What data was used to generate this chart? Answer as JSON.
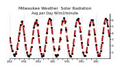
{
  "title": "Milwaukee Weather  Solar Radiation",
  "subtitle": "Avg per Day W/m2/minute",
  "title_fontsize": 4.2,
  "ylim": [
    0,
    7
  ],
  "yticks": [
    1,
    2,
    3,
    4,
    5,
    6
  ],
  "ylabel_fontsize": 3.2,
  "xlabel_fontsize": 2.8,
  "line_color": "#cc0000",
  "bg_color": "#ffffff",
  "grid_color": "#999999",
  "values": [
    3.2,
    2.1,
    1.2,
    0.7,
    0.5,
    0.8,
    1.5,
    2.8,
    4.0,
    5.2,
    5.8,
    5.0,
    3.8,
    2.2,
    1.0,
    0.4,
    0.3,
    0.7,
    1.8,
    3.2,
    4.8,
    5.5,
    6.0,
    5.2,
    3.5,
    1.8,
    0.8,
    0.3,
    0.5,
    1.2,
    2.5,
    4.0,
    5.5,
    6.2,
    6.0,
    4.8,
    3.0,
    1.5,
    0.6,
    0.3,
    0.6,
    1.5,
    3.0,
    4.5,
    5.8,
    6.3,
    5.8,
    4.5,
    2.8,
    1.2,
    0.5,
    0.3,
    0.8,
    2.0,
    3.5,
    5.0,
    6.0,
    6.2,
    5.5,
    4.2,
    2.5,
    1.0,
    0.5,
    0.4,
    1.0,
    2.2,
    3.8,
    5.2,
    6.0,
    6.0,
    5.2,
    3.8,
    2.2,
    1.0,
    0.5,
    0.5,
    1.2,
    2.5,
    4.0,
    5.5,
    6.2,
    6.0,
    5.0,
    3.5
  ],
  "grid_x_positions": [
    0,
    12,
    24,
    36,
    48,
    60,
    72
  ],
  "x_tick_labels": [
    "1/04",
    "5/04",
    "9/04",
    "1/05",
    "5/05",
    "9/05",
    "1/06",
    "5/06",
    "9/06",
    "1/07",
    "5/07",
    "9/07",
    "1/08",
    "5/08",
    "9/08",
    "1/09",
    "5/09",
    "9/09",
    "1/10"
  ],
  "x_tick_positions": [
    0,
    4,
    8,
    12,
    16,
    20,
    24,
    28,
    32,
    36,
    40,
    44,
    48,
    52,
    56,
    60,
    64,
    68,
    72
  ]
}
